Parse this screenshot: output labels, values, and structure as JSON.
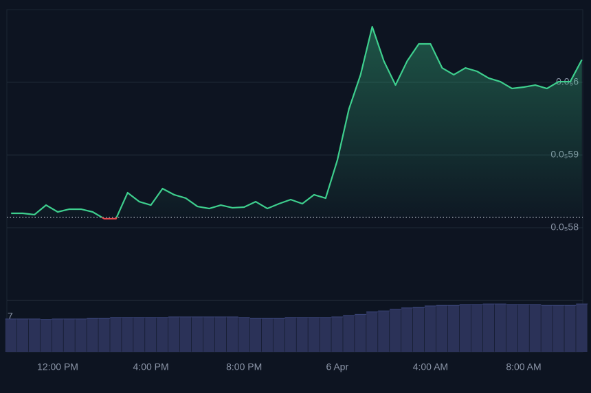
{
  "chart_data": {
    "type": "line",
    "categories": [
      null,
      null,
      null,
      null,
      "12:00 PM",
      null,
      null,
      null,
      null,
      null,
      null,
      null,
      "4:00 PM",
      null,
      null,
      null,
      null,
      null,
      null,
      null,
      "8:00 PM",
      null,
      null,
      null,
      null,
      null,
      null,
      null,
      "6 Apr",
      null,
      null,
      null,
      null,
      null,
      null,
      null,
      "4:00 AM",
      null,
      null,
      null,
      null,
      null,
      null,
      null,
      "8:00 AM",
      null,
      null,
      null,
      null,
      null
    ],
    "series": [
      {
        "color": "#3ecf8e",
        "down_color": "#e5484d",
        "values": [
          5.8198e-06,
          5.8198e-06,
          5.8179e-06,
          5.8311e-06,
          5.8217e-06,
          5.8255e-06,
          5.8255e-06,
          5.8217e-06,
          5.8123e-06,
          5.8123e-06,
          5.8481e-06,
          5.8358e-06,
          5.8311e-06,
          5.8538e-06,
          5.8453e-06,
          5.8406e-06,
          5.8292e-06,
          5.8264e-06,
          5.8311e-06,
          5.8274e-06,
          5.8283e-06,
          5.8358e-06,
          5.8264e-06,
          5.833e-06,
          5.8387e-06,
          5.833e-06,
          5.8453e-06,
          5.8406e-06,
          5.8925e-06,
          5.9632e-06,
          6.0104e-06,
          6.0764e-06,
          6.0292e-06,
          5.9962e-06,
          6.0292e-06,
          6.0528e-06,
          6.0528e-06,
          6.0198e-06,
          6.0104e-06,
          6.0198e-06,
          6.0151e-06,
          6.0057e-06,
          6.0009e-06,
          5.9915e-06,
          5.9934e-06,
          5.9962e-06,
          5.9915e-06,
          6.0009e-06,
          6.0009e-06,
          6.0311e-06
        ]
      },
      {
        "type": "bar",
        "axis": "y2",
        "color": "#2b3258",
        "values": [
          6.6,
          6.6,
          6.6,
          6.5,
          6.6,
          6.6,
          6.6,
          6.7,
          6.7,
          6.9,
          6.9,
          6.9,
          6.9,
          6.9,
          7.0,
          7.0,
          7.0,
          7.0,
          7.0,
          7.0,
          6.9,
          6.7,
          6.7,
          6.7,
          6.9,
          6.9,
          6.9,
          6.9,
          7.0,
          7.3,
          7.5,
          8.0,
          8.2,
          8.5,
          8.8,
          8.9,
          9.2,
          9.3,
          9.3,
          9.5,
          9.5,
          9.6,
          9.6,
          9.5,
          9.5,
          9.5,
          9.3,
          9.3,
          9.3,
          9.6
        ]
      }
    ],
    "baseline": 5.8142e-06,
    "ylim": [
      5.7e-06,
      6.1e-06
    ],
    "yticks": [
      {
        "value": 5.8e-06,
        "label": "0.0₅58"
      },
      {
        "value": 5.9e-06,
        "label": "0.0₅59"
      },
      {
        "value": 6e-06,
        "label": "0.0₅6"
      }
    ],
    "y2lim": [
      0,
      10.3
    ],
    "y2ticks": [
      7
    ],
    "grid": true
  }
}
